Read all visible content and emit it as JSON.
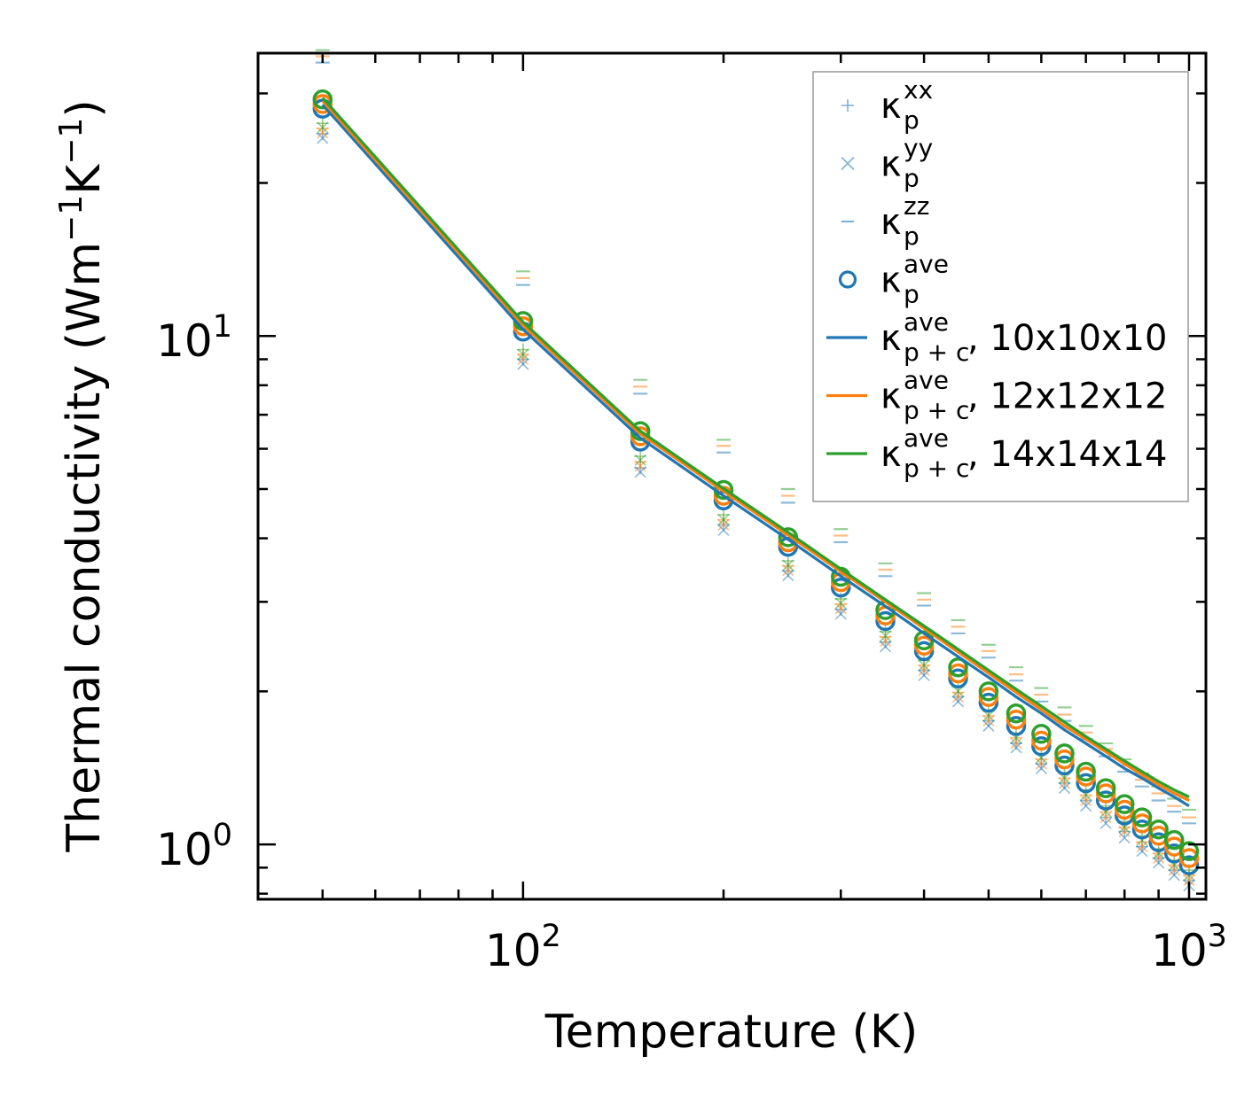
{
  "chart_data": {
    "type": "scatter",
    "x_scale": "log",
    "y_scale": "log",
    "xlabel": "Temperature (K)",
    "ylabel": "Thermal conductivity (Wm",
    "ylabel_parts": {
      "base": "Thermal conductivity (Wm",
      "exp1": "−1",
      "mid": "K",
      "exp2": "−1",
      "end": ")"
    },
    "xlim": [
      40,
      1060
    ],
    "ylim": [
      0.78,
      36
    ],
    "x_ticks": [
      {
        "value": 100,
        "base": "10",
        "exp": "2"
      },
      {
        "value": 1000,
        "base": "10",
        "exp": "3"
      }
    ],
    "y_ticks": [
      {
        "value": 1,
        "base": "10",
        "exp": "0"
      },
      {
        "value": 10,
        "base": "10",
        "exp": "1"
      }
    ],
    "x": [
      50,
      100,
      150,
      200,
      250,
      300,
      350,
      400,
      450,
      500,
      550,
      600,
      650,
      700,
      750,
      800,
      850,
      900,
      950,
      1000
    ],
    "kappa_p_ave": {
      "10x10x10": [
        28.0,
        10.2,
        6.2,
        4.75,
        3.85,
        3.2,
        2.75,
        2.4,
        2.12,
        1.9,
        1.71,
        1.56,
        1.43,
        1.32,
        1.22,
        1.14,
        1.07,
        1.01,
        0.96,
        0.91
      ],
      "12x12x12": [
        28.6,
        10.45,
        6.35,
        4.85,
        3.93,
        3.28,
        2.82,
        2.46,
        2.17,
        1.95,
        1.76,
        1.6,
        1.47,
        1.36,
        1.26,
        1.17,
        1.1,
        1.04,
        0.99,
        0.94
      ],
      "14x14x14": [
        29.2,
        10.7,
        6.5,
        4.98,
        4.02,
        3.36,
        2.89,
        2.52,
        2.23,
        2.0,
        1.81,
        1.65,
        1.51,
        1.39,
        1.29,
        1.2,
        1.13,
        1.07,
        1.02,
        0.97
      ]
    },
    "kappa_p_xx": {
      "10x10x10": [
        25.0,
        9.0,
        5.5,
        4.25,
        3.45,
        2.9,
        2.5,
        2.2,
        1.95,
        1.75,
        1.58,
        1.44,
        1.32,
        1.22,
        1.13,
        1.06,
        0.99,
        0.94,
        0.89,
        0.85
      ],
      "12x12x12": [
        25.6,
        9.2,
        5.65,
        4.35,
        3.53,
        2.97,
        2.56,
        2.25,
        1.99,
        1.79,
        1.62,
        1.47,
        1.35,
        1.25,
        1.16,
        1.08,
        1.01,
        0.96,
        0.91,
        0.87
      ],
      "14x14x14": [
        26.2,
        9.4,
        5.8,
        4.45,
        3.61,
        3.04,
        2.62,
        2.3,
        2.04,
        1.83,
        1.65,
        1.51,
        1.38,
        1.28,
        1.19,
        1.11,
        1.04,
        0.98,
        0.93,
        0.89
      ]
    },
    "kappa_p_yy": {
      "10x10x10": [
        24.5,
        8.8,
        5.4,
        4.15,
        3.38,
        2.84,
        2.45,
        2.15,
        1.91,
        1.71,
        1.55,
        1.41,
        1.29,
        1.19,
        1.1,
        1.03,
        0.97,
        0.92,
        0.87,
        0.83
      ],
      "12x12x12": [
        25.1,
        9.0,
        5.55,
        4.25,
        3.46,
        2.91,
        2.51,
        2.2,
        1.95,
        1.75,
        1.58,
        1.44,
        1.32,
        1.22,
        1.13,
        1.06,
        0.99,
        0.94,
        0.89,
        0.85
      ],
      "14x14x14": [
        25.7,
        9.2,
        5.7,
        4.35,
        3.54,
        2.98,
        2.57,
        2.25,
        2.0,
        1.79,
        1.62,
        1.48,
        1.35,
        1.25,
        1.16,
        1.08,
        1.02,
        0.96,
        0.91,
        0.87
      ]
    },
    "kappa_p_zz": {
      "10x10x10": [
        34.5,
        12.6,
        7.7,
        5.9,
        4.7,
        3.93,
        3.37,
        2.95,
        2.6,
        2.33,
        2.1,
        1.91,
        1.75,
        1.61,
        1.49,
        1.39,
        1.3,
        1.22,
        1.16,
        1.1
      ],
      "12x12x12": [
        35.5,
        13.0,
        7.95,
        6.08,
        4.85,
        4.05,
        3.47,
        3.03,
        2.68,
        2.4,
        2.16,
        1.97,
        1.8,
        1.66,
        1.54,
        1.43,
        1.34,
        1.26,
        1.19,
        1.13
      ],
      "14x14x14": [
        36.5,
        13.4,
        8.2,
        6.25,
        5.0,
        4.17,
        3.57,
        3.12,
        2.76,
        2.47,
        2.23,
        2.03,
        1.86,
        1.71,
        1.58,
        1.47,
        1.38,
        1.3,
        1.23,
        1.17
      ]
    },
    "kappa_pc_ave": {
      "10x10x10": [
        28.5,
        10.3,
        6.3,
        4.85,
        3.98,
        3.37,
        2.94,
        2.6,
        2.34,
        2.13,
        1.95,
        1.81,
        1.68,
        1.58,
        1.49,
        1.41,
        1.35,
        1.29,
        1.24,
        1.19
      ],
      "12x12x12": [
        29.0,
        10.5,
        6.42,
        4.95,
        4.06,
        3.44,
        3.0,
        2.66,
        2.39,
        2.17,
        1.99,
        1.84,
        1.71,
        1.61,
        1.52,
        1.44,
        1.37,
        1.31,
        1.26,
        1.22
      ],
      "14x14x14": [
        29.4,
        10.65,
        6.5,
        5.01,
        4.11,
        3.48,
        3.03,
        2.69,
        2.42,
        2.2,
        2.02,
        1.87,
        1.74,
        1.63,
        1.54,
        1.46,
        1.39,
        1.33,
        1.28,
        1.24
      ]
    },
    "series": [
      {
        "name": "kappa_pc 10x10x10",
        "key": "10x10x10",
        "color": "#1f77b4"
      },
      {
        "name": "kappa_pc 12x12x12",
        "key": "12x12x12",
        "color": "#ff7f0e"
      },
      {
        "name": "kappa_pc 14x14x14",
        "key": "14x14x14",
        "color": "#2ca02c"
      }
    ],
    "legend_position": "top-right",
    "legend": [
      {
        "symbol": "plus",
        "color": "#7fb2d8",
        "kappa": "κ",
        "sub": "p",
        "sup": "xx",
        "suffix": ""
      },
      {
        "symbol": "x",
        "color": "#7fb2d8",
        "kappa": "κ",
        "sub": "p",
        "sup": "yy",
        "suffix": ""
      },
      {
        "symbol": "dash",
        "color": "#7fb2d8",
        "kappa": "κ",
        "sub": "p",
        "sup": "zz",
        "suffix": ""
      },
      {
        "symbol": "circle",
        "color": "#1f77b4",
        "kappa": "κ",
        "sub": "p",
        "sup": "ave",
        "suffix": ""
      },
      {
        "symbol": "line",
        "color": "#1f77b4",
        "kappa": "κ",
        "sub": "p + c",
        "sup": "ave",
        "suffix": ", 10x10x10"
      },
      {
        "symbol": "line",
        "color": "#ff7f0e",
        "kappa": "κ",
        "sub": "p + c",
        "sup": "ave",
        "suffix": ", 12x12x12"
      },
      {
        "symbol": "line",
        "color": "#2ca02c",
        "kappa": "κ",
        "sub": "p + c",
        "sup": "ave",
        "suffix": ", 14x14x14"
      }
    ],
    "grid": false
  }
}
